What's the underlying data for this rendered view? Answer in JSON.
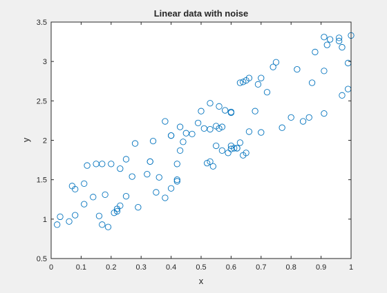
{
  "chart_data": {
    "type": "scatter",
    "title": "Linear data with noise",
    "xlabel": "x",
    "ylabel": "y",
    "xlim": [
      0,
      1
    ],
    "ylim": [
      0.5,
      3.5
    ],
    "xticks": [
      "0",
      "0.1",
      "0.2",
      "0.3",
      "0.4",
      "0.5",
      "0.6",
      "0.7",
      "0.8",
      "0.9",
      "1"
    ],
    "yticks": [
      "0.5",
      "1",
      "1.5",
      "2",
      "2.5",
      "3",
      "3.5"
    ],
    "grid": false,
    "marker": "circle-open",
    "marker_color": "#0072bd",
    "points": [
      [
        0.03,
        1.03
      ],
      [
        0.02,
        0.93
      ],
      [
        0.07,
        1.42
      ],
      [
        0.08,
        1.38
      ],
      [
        0.06,
        0.97
      ],
      [
        0.08,
        1.05
      ],
      [
        0.11,
        1.45
      ],
      [
        0.11,
        1.19
      ],
      [
        0.12,
        1.68
      ],
      [
        0.14,
        1.28
      ],
      [
        0.15,
        1.7
      ],
      [
        0.16,
        1.04
      ],
      [
        0.17,
        1.7
      ],
      [
        0.17,
        0.93
      ],
      [
        0.18,
        1.31
      ],
      [
        0.19,
        0.9
      ],
      [
        0.2,
        1.7
      ],
      [
        0.21,
        1.08
      ],
      [
        0.22,
        1.1
      ],
      [
        0.22,
        1.13
      ],
      [
        0.23,
        1.17
      ],
      [
        0.23,
        1.64
      ],
      [
        0.25,
        1.29
      ],
      [
        0.25,
        1.76
      ],
      [
        0.27,
        1.54
      ],
      [
        0.28,
        1.96
      ],
      [
        0.29,
        1.15
      ],
      [
        0.32,
        1.57
      ],
      [
        0.33,
        1.73
      ],
      [
        0.33,
        1.73
      ],
      [
        0.34,
        1.99
      ],
      [
        0.35,
        1.34
      ],
      [
        0.36,
        1.53
      ],
      [
        0.38,
        1.27
      ],
      [
        0.38,
        2.24
      ],
      [
        0.4,
        2.06
      ],
      [
        0.4,
        2.06
      ],
      [
        0.4,
        1.39
      ],
      [
        0.42,
        1.5
      ],
      [
        0.42,
        1.48
      ],
      [
        0.42,
        1.7
      ],
      [
        0.43,
        1.87
      ],
      [
        0.43,
        2.17
      ],
      [
        0.44,
        1.98
      ],
      [
        0.45,
        2.09
      ],
      [
        0.47,
        2.08
      ],
      [
        0.49,
        2.22
      ],
      [
        0.5,
        2.37
      ],
      [
        0.51,
        2.15
      ],
      [
        0.52,
        1.71
      ],
      [
        0.53,
        1.73
      ],
      [
        0.53,
        2.14
      ],
      [
        0.53,
        2.47
      ],
      [
        0.54,
        1.67
      ],
      [
        0.55,
        1.93
      ],
      [
        0.55,
        2.18
      ],
      [
        0.56,
        2.15
      ],
      [
        0.56,
        2.43
      ],
      [
        0.57,
        1.87
      ],
      [
        0.57,
        2.17
      ],
      [
        0.58,
        2.38
      ],
      [
        0.59,
        1.84
      ],
      [
        0.6,
        2.36
      ],
      [
        0.6,
        1.89
      ],
      [
        0.6,
        1.93
      ],
      [
        0.6,
        2.35
      ],
      [
        0.61,
        1.9
      ],
      [
        0.62,
        1.9
      ],
      [
        0.62,
        1.9
      ],
      [
        0.63,
        1.97
      ],
      [
        0.63,
        2.73
      ],
      [
        0.64,
        2.74
      ],
      [
        0.64,
        1.81
      ],
      [
        0.65,
        1.84
      ],
      [
        0.65,
        2.76
      ],
      [
        0.66,
        2.11
      ],
      [
        0.66,
        2.79
      ],
      [
        0.68,
        2.37
      ],
      [
        0.69,
        2.71
      ],
      [
        0.7,
        2.79
      ],
      [
        0.7,
        2.1
      ],
      [
        0.72,
        2.61
      ],
      [
        0.74,
        2.93
      ],
      [
        0.75,
        2.99
      ],
      [
        0.77,
        2.16
      ],
      [
        0.8,
        2.29
      ],
      [
        0.82,
        2.9
      ],
      [
        0.84,
        2.24
      ],
      [
        0.86,
        2.29
      ],
      [
        0.87,
        2.73
      ],
      [
        0.88,
        3.12
      ],
      [
        0.91,
        3.31
      ],
      [
        0.91,
        2.88
      ],
      [
        0.91,
        2.34
      ],
      [
        0.92,
        3.21
      ],
      [
        0.93,
        3.28
      ],
      [
        0.96,
        3.26
      ],
      [
        0.96,
        3.3
      ],
      [
        0.97,
        3.18
      ],
      [
        0.97,
        2.57
      ],
      [
        0.99,
        2.65
      ],
      [
        0.99,
        2.98
      ],
      [
        1.0,
        3.33
      ]
    ]
  }
}
